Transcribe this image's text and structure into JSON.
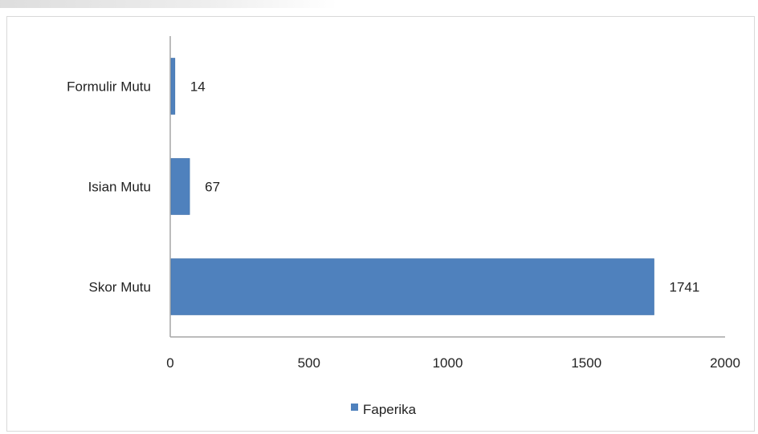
{
  "chart_data": {
    "type": "bar",
    "orientation": "horizontal",
    "categories": [
      "Formulir Mutu",
      "Isian Mutu",
      "Skor Mutu"
    ],
    "series": [
      {
        "name": "Faperika",
        "values": [
          14,
          67,
          1741
        ],
        "color": "#4f81bd"
      }
    ],
    "xlim": [
      0,
      2000
    ],
    "x_ticks": [
      "0",
      "500",
      "1000",
      "1500",
      "2000"
    ],
    "data_labels": [
      "14",
      "67",
      "1741"
    ],
    "grid": false,
    "legend": "bottom"
  }
}
